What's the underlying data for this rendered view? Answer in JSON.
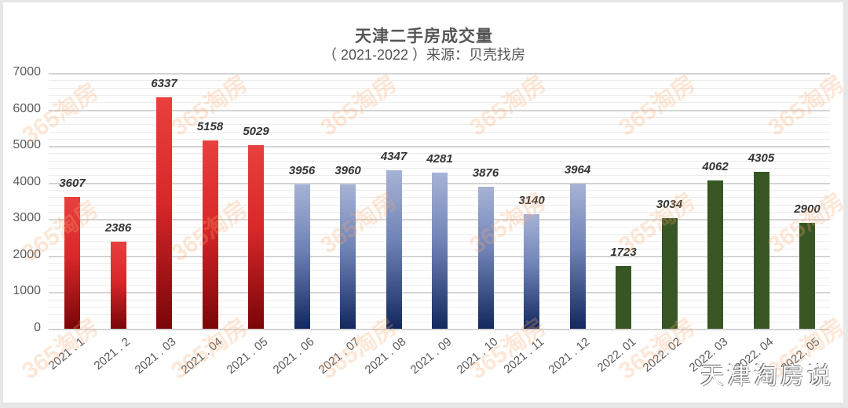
{
  "header": {
    "title": "天津二手房成交量",
    "subtitle": "（ 2021-2022 ）来源：贝壳找房"
  },
  "watermark": {
    "text": "365淘房",
    "signature": "天津淘房说"
  },
  "colors": {
    "red_top": "#e8403f",
    "red_bottom": "#7a0508",
    "blue_top": "#a7b3d6",
    "blue_bottom": "#12285e",
    "green": "#375623"
  },
  "chart_data": {
    "type": "bar",
    "title": "天津二手房成交量",
    "subtitle": "（ 2021-2022 ）来源：贝壳找房",
    "xlabel": "",
    "ylabel": "",
    "ylim": [
      0,
      7000
    ],
    "yticks": [
      0,
      1000,
      2000,
      3000,
      4000,
      5000,
      6000,
      7000
    ],
    "grid": true,
    "legend": "none",
    "categories": [
      "2021.1",
      "2021.2",
      "2021.03",
      "2021.04",
      "2021.05",
      "2021.06",
      "2021.07",
      "2021.08",
      "2021.09",
      "2021.10",
      "2021.11",
      "2021.12",
      "2022.01",
      "2022.02",
      "2022.03",
      "2022.04",
      "2022.05"
    ],
    "values": [
      3607,
      2386,
      6337,
      5158,
      5029,
      3956,
      3960,
      4347,
      4281,
      3876,
      3140,
      3964,
      1723,
      3034,
      4062,
      4305,
      2900
    ],
    "bar_colors": [
      "red",
      "red",
      "red",
      "red",
      "red",
      "blue",
      "blue",
      "blue",
      "blue",
      "blue",
      "blue",
      "blue",
      "green",
      "green",
      "green",
      "green",
      "green"
    ],
    "xtick_labels": [
      "2021 . 1",
      "2021 . 2",
      "2021 . 03",
      "2021 . 04",
      "2021 . 05",
      "2021 . 06",
      "2021 . 07",
      "2021 . 08",
      "2021 . 09",
      "2021 . 10",
      "2021 . 11",
      "2021 . 12",
      "2022. 01",
      "2022. 02",
      "2022. 03",
      "2022. 04",
      "2022. 05"
    ]
  }
}
